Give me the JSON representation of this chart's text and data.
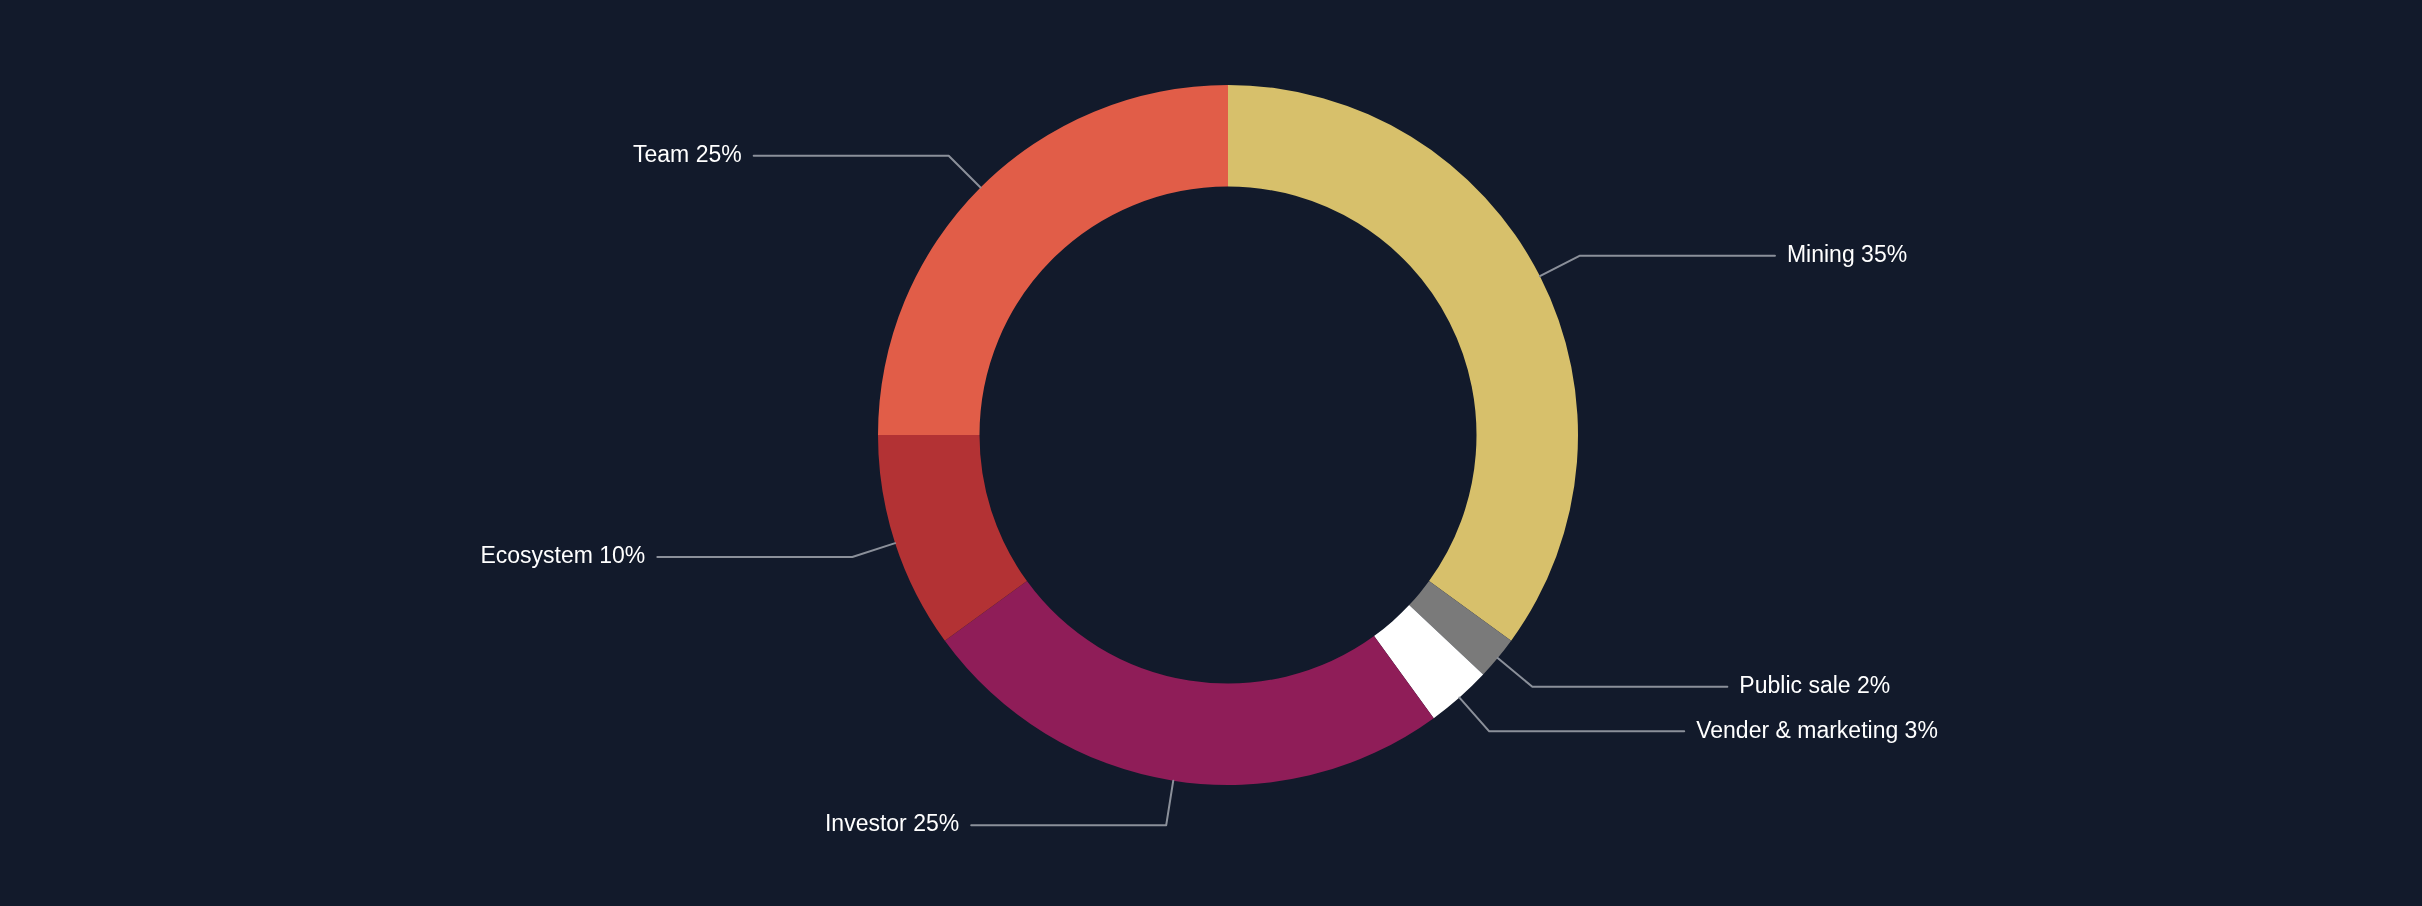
{
  "chart_data": {
    "type": "donut",
    "categories": [
      "Mining",
      "Public sale",
      "Vender & marketing",
      "Investor",
      "Ecosystem",
      "Team"
    ],
    "values": [
      35,
      2,
      3,
      25,
      10,
      25
    ],
    "colors": [
      "#d7c06b",
      "#7a7a7a",
      "#ffffff",
      "#8f1d58",
      "#b33234",
      "#e15d48"
    ],
    "value_labels": [
      "35%",
      "2%",
      "3%",
      "25%",
      "10%",
      "25%"
    ]
  }
}
